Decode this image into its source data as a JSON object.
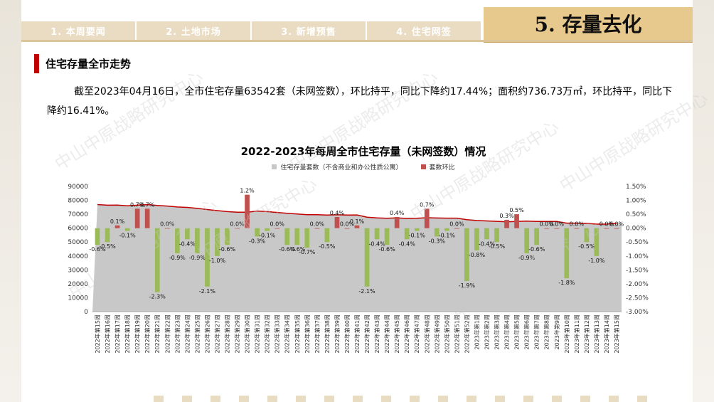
{
  "nav": {
    "tabs": [
      "1. 本周要闻",
      "2. 土地市场",
      "3. 新增预售",
      "4. 住宅网签"
    ],
    "section_title": "5. 存量去化"
  },
  "subheading": "住宅存量全市走势",
  "paragraph": "截至2023年04月16日，全市住宅存量63542套（未网签数），环比持平，同比下降约17.44%；面积约736.73万㎡，环比持平，同比下降约16.41%。",
  "watermark": "中山中原战略研究中心",
  "colors": {
    "area": "#c8c8c8",
    "line": "#c00000",
    "pos_bar": "#c0504d",
    "neg_bar": "#9bbb59",
    "tab_bg": "#eadcc3",
    "title_bg": "#e8c98d"
  },
  "chart_data": {
    "type": "area",
    "title": "2022-2023年每周全市住宅存量（未网签数）情况",
    "series": [
      {
        "name": "住宅存量套数（不含商业和办公性质公寓）",
        "type": "area",
        "axis": "left"
      },
      {
        "name": "套数环比",
        "type": "bar",
        "axis": "right"
      }
    ],
    "categories": [
      "2022年第15周",
      "2022年第16周",
      "2022年第17周",
      "2022年第18周",
      "2022年第19周",
      "2022年第20周",
      "2022年第21周",
      "2022年第22周",
      "2022年第23周",
      "2022年第24周",
      "2022年第25周",
      "2022年第26周",
      "2022年第27周",
      "2022年第28周",
      "2022年第29周",
      "2022年第30周",
      "2022年第31周",
      "2022年第32周",
      "2022年第33周",
      "2022年第34周",
      "2022年第35周",
      "2022年第36周",
      "2022年第37周",
      "2022年第38周",
      "2022年第39周",
      "2022年第40周",
      "2022年第41周",
      "2022年第42周",
      "2022年第43周",
      "2022年第44周",
      "2022年第45周",
      "2022年第46周",
      "2022年第47周",
      "2022年第48周",
      "2022年第49周",
      "2022年第50周",
      "2022年第51周",
      "2022年第52周",
      "2023年第1周",
      "2023年第2周",
      "2023年第3周",
      "2023年第4周",
      "2023年第5周",
      "2023年第6周",
      "2023年第7周",
      "2023年第8周",
      "2023年第9周",
      "2023年第10周",
      "2023年第11周",
      "2023年第12周",
      "2023年第13周",
      "2023年第14周",
      "2023年第15周"
    ],
    "stock": [
      76960,
      76500,
      76600,
      76100,
      76500,
      76900,
      76300,
      75900,
      75200,
      74900,
      74200,
      73400,
      72600,
      71900,
      71500,
      71500,
      72300,
      71900,
      71300,
      70700,
      70200,
      69700,
      69700,
      69400,
      69600,
      69400,
      69500,
      67900,
      67400,
      67100,
      67400,
      67000,
      67100,
      67500,
      67300,
      67200,
      67200,
      66100,
      65500,
      65200,
      64900,
      64600,
      64800,
      65100,
      64800,
      64800,
      64800,
      63600,
      63600,
      63400,
      62900,
      62900,
      63542
    ],
    "ratio": [
      -0.6,
      -0.5,
      0.1,
      -0.1,
      0.7,
      0.7,
      -2.3,
      0.0,
      -0.9,
      -0.4,
      -0.9,
      -2.1,
      -1.0,
      -0.6,
      0.0,
      1.2,
      -0.3,
      -0.1,
      0.0,
      -0.6,
      -0.6,
      -0.7,
      0.0,
      -0.5,
      0.4,
      0.0,
      0.1,
      -2.1,
      -0.4,
      -0.6,
      0.4,
      -0.4,
      -0.1,
      0.7,
      -0.3,
      -0.1,
      0.0,
      -1.9,
      -0.8,
      -0.4,
      -0.5,
      0.3,
      0.5,
      -0.9,
      -0.6,
      0.0,
      0.0,
      -1.8,
      0.0,
      -0.5,
      -1.0,
      0.0,
      0.0
    ],
    "ratio_labels": [
      "-0.6%",
      "-0.5%",
      "0.1%",
      "-0.1%",
      "0.7%",
      "0.7%",
      "-2.3%",
      "0.0%",
      "-0.9%",
      "-0.4%",
      "-0.9%",
      "-2.1%",
      "-1.0%",
      "-0.6%",
      "0.0%",
      "1.2%",
      "-0.3%",
      "-0.1%",
      "0.0%",
      "-0.6%",
      "-0.6%",
      "-0.7%",
      "0.0%",
      "-0.5%",
      "0.4%",
      "0.0%",
      "0.1%",
      "-2.1%",
      "-0.4%",
      "-0.6%",
      "0.4%",
      "-0.4%",
      "-0.1%",
      "0.7%",
      "-0.3%",
      "-0.1%",
      "0.0%",
      "-1.9%",
      "-0.8%",
      "-0.4%",
      "-0.5%",
      "0.3%",
      "0.5%",
      "-0.9%",
      "-0.6%",
      "0.0%",
      "0.0%",
      "-1.8%",
      "0.0%",
      "-0.5%",
      "-1.0%",
      "0.0%",
      "0.0%"
    ],
    "left_axis": {
      "min": 0,
      "max": 90000,
      "step": 10000,
      "ticks": [
        "0",
        "10000",
        "20000",
        "30000",
        "40000",
        "50000",
        "60000",
        "70000",
        "80000",
        "90000"
      ]
    },
    "right_axis": {
      "min": -3.0,
      "max": 1.5,
      "ticks": [
        "-3.00%",
        "-2.50%",
        "-2.00%",
        "-1.50%",
        "-1.00%",
        "-0.50%",
        "0.00%",
        "0.50%",
        "1.00%",
        "1.50%"
      ]
    },
    "grid": false,
    "legend_position": "top"
  }
}
